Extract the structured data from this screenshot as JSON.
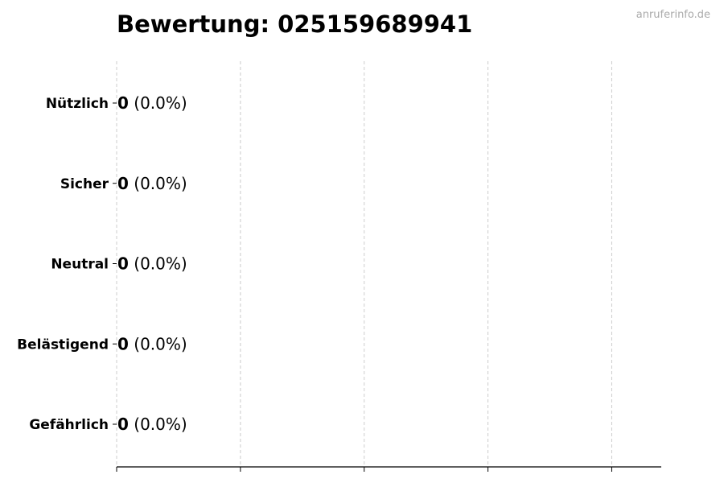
{
  "watermark": "anruferinfo.de",
  "chart_data": {
    "type": "bar",
    "orientation": "horizontal",
    "title": "Bewertung: 025159689941",
    "categories": [
      "Nützlich",
      "Sicher",
      "Neutral",
      "Belästigend",
      "Gefährlich"
    ],
    "values": [
      0,
      0,
      0,
      0,
      0
    ],
    "data_labels": [
      {
        "count": "0",
        "percent": "(0.0%)"
      },
      {
        "count": "0",
        "percent": "(0.0%)"
      },
      {
        "count": "0",
        "percent": "(0.0%)"
      },
      {
        "count": "0",
        "percent": "(0.0%)"
      },
      {
        "count": "0",
        "percent": "(0.0%)"
      }
    ],
    "xlim": [
      0,
      4.4
    ],
    "xticks": [
      0,
      1,
      2,
      3,
      4
    ],
    "xtick_labels_shown": false,
    "grid": "x, dashed",
    "colors": {
      "bar_edge": "#000000",
      "grid": "#cccccc",
      "watermark": "#aaaaaa"
    }
  }
}
